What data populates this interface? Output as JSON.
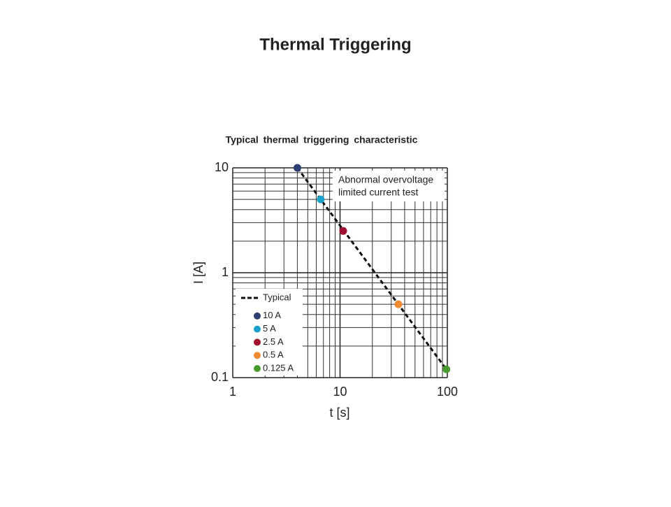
{
  "title": "Thermal Triggering",
  "chart_data": {
    "type": "scatter",
    "title": "Typical thermal triggering characteristic",
    "x_label": "t [s]",
    "y_label": "I [A]",
    "xscale": "log",
    "yscale": "log",
    "grid": true,
    "xlim": [
      1,
      100
    ],
    "ylim": [
      0.1,
      10
    ],
    "xticks": [
      1,
      10,
      100
    ],
    "yticks": [
      0.1,
      1,
      10
    ],
    "annotation": [
      "Abnormal overvoltage",
      "limited current test"
    ],
    "legend": "lower left",
    "series": [
      {
        "name": "Typical",
        "color": "#111111",
        "mode": "dashed-line",
        "x": [
          4,
          98
        ],
        "values": [
          10,
          0.12
        ]
      },
      {
        "name": "10 A",
        "color": "#2c4170",
        "mode": "marker",
        "x": [
          4
        ],
        "values": [
          10
        ]
      },
      {
        "name": "5 A",
        "color": "#1aa3c9",
        "mode": "marker",
        "x": [
          6.6
        ],
        "values": [
          5
        ]
      },
      {
        "name": "2.5 A",
        "color": "#a0112f",
        "mode": "marker",
        "x": [
          10.7
        ],
        "values": [
          2.5
        ]
      },
      {
        "name": "0.5 A",
        "color": "#f08a30",
        "mode": "marker",
        "x": [
          35
        ],
        "values": [
          0.5
        ]
      },
      {
        "name": "0.125 A",
        "color": "#4a9a2f",
        "mode": "marker",
        "x": [
          98
        ],
        "values": [
          0.12
        ]
      }
    ]
  }
}
